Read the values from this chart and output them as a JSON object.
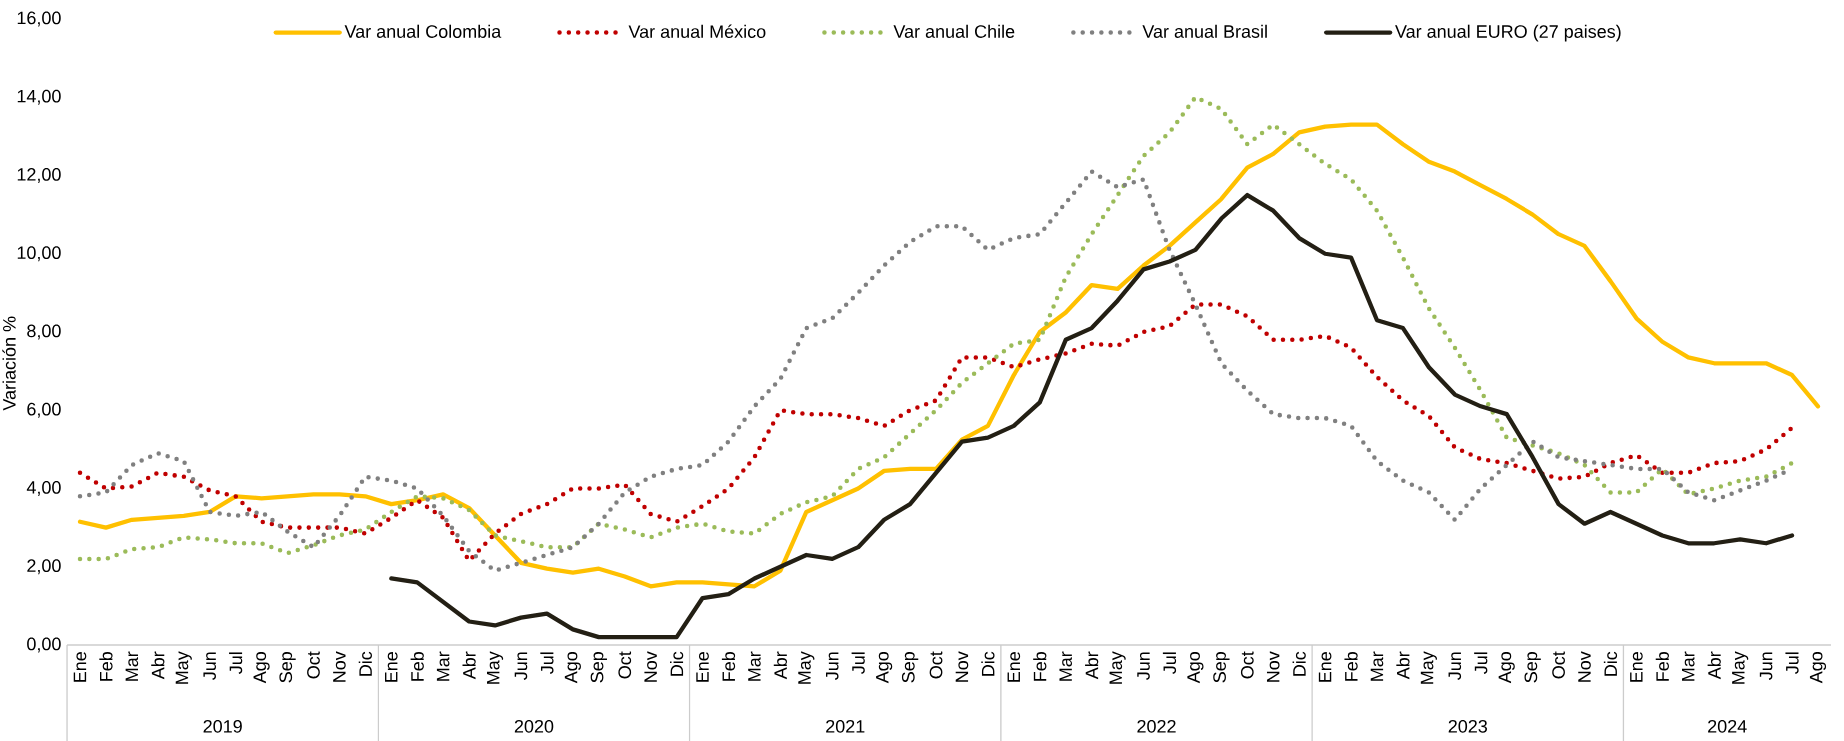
{
  "chart_data": {
    "type": "line",
    "ylabel": "Variación %",
    "legend": "top",
    "grid": false,
    "categories": [
      "Ene",
      "Feb",
      "Mar",
      "Abr",
      "May",
      "Jun",
      "Jul",
      "Ago",
      "Sep",
      "Oct",
      "Nov",
      "Dic",
      "Ene",
      "Feb",
      "Mar",
      "Abr",
      "May",
      "Jun",
      "Jul",
      "Ago",
      "Sep",
      "Oct",
      "Nov",
      "Dic",
      "Ene",
      "Feb",
      "Mar",
      "Abr",
      "May",
      "Jun",
      "Jul",
      "Ago",
      "Sep",
      "Oct",
      "Nov",
      "Dic",
      "Ene",
      "Feb",
      "Mar",
      "Abr",
      "May",
      "Jun",
      "Jul",
      "Ago",
      "Sep",
      "Oct",
      "Nov",
      "Dic",
      "Ene",
      "Feb",
      "Mar",
      "Abr",
      "May",
      "Jun",
      "Jul",
      "Ago",
      "Sep",
      "Oct",
      "Nov",
      "Dic",
      "Ene",
      "Feb",
      "Mar",
      "Abr",
      "May",
      "Jun",
      "Jul",
      "Ago"
    ],
    "annotations": [
      "2019",
      "2020",
      "2021",
      "2022",
      "2023",
      "2024"
    ],
    "ylim": [
      0,
      16
    ],
    "yticks": [
      {
        "value": 0,
        "label": "0,00"
      },
      {
        "value": 2,
        "label": "2,00"
      },
      {
        "value": 4,
        "label": "4,00"
      },
      {
        "value": 6,
        "label": "6,00"
      },
      {
        "value": 8,
        "label": "8,00"
      },
      {
        "value": 10,
        "label": "10,00"
      },
      {
        "value": 12,
        "label": "12,00"
      },
      {
        "value": 14,
        "label": "14,00"
      },
      {
        "value": 16,
        "label": "16,00"
      }
    ],
    "series": [
      {
        "name": "Var anual Colombia",
        "color": "#ffc000",
        "line_style": "solid",
        "values": [
          3.15,
          3.0,
          3.2,
          3.25,
          3.3,
          3.4,
          3.8,
          3.75,
          3.8,
          3.85,
          3.85,
          3.8,
          3.6,
          3.7,
          3.85,
          3.5,
          2.8,
          2.1,
          1.95,
          1.85,
          1.95,
          1.75,
          1.5,
          1.6,
          1.6,
          1.55,
          1.5,
          1.9,
          3.4,
          3.7,
          4.0,
          4.45,
          4.5,
          4.5,
          5.25,
          5.6,
          6.9,
          8.0,
          8.5,
          9.2,
          9.1,
          9.7,
          10.2,
          10.8,
          11.4,
          12.2,
          12.55,
          13.1,
          13.25,
          13.3,
          13.3,
          12.8,
          12.35,
          12.1,
          11.75,
          11.4,
          11.0,
          10.5,
          10.2,
          9.3,
          8.35,
          7.75,
          7.35,
          7.2,
          7.2,
          7.2,
          6.9,
          6.1
        ]
      },
      {
        "name": "Var anual México",
        "color": "#c00000",
        "line_style": "dotted",
        "values": [
          4.4,
          4.0,
          4.05,
          4.4,
          4.3,
          3.95,
          3.8,
          3.15,
          3.0,
          3.0,
          3.0,
          2.85,
          3.25,
          3.7,
          3.25,
          2.15,
          2.85,
          3.35,
          3.6,
          4.0,
          4.0,
          4.1,
          3.35,
          3.15,
          3.55,
          4.0,
          4.8,
          6.0,
          5.9,
          5.9,
          5.8,
          5.6,
          6.0,
          6.25,
          7.35,
          7.35,
          7.1,
          7.3,
          7.45,
          7.7,
          7.65,
          8.0,
          8.15,
          8.7,
          8.7,
          8.4,
          7.8,
          7.8,
          7.9,
          7.6,
          6.85,
          6.25,
          5.85,
          5.05,
          4.75,
          4.65,
          4.45,
          4.25,
          4.3,
          4.65,
          4.85,
          4.4,
          4.4,
          4.65,
          4.7,
          5.0,
          5.55,
          null
        ]
      },
      {
        "name": "Var anual Chile",
        "color": "#9bbb59",
        "line_style": "dotted",
        "values": [
          2.2,
          2.2,
          2.45,
          2.5,
          2.75,
          2.7,
          2.6,
          2.6,
          2.35,
          2.55,
          2.8,
          2.95,
          3.4,
          3.8,
          3.75,
          3.45,
          2.8,
          2.65,
          2.5,
          2.5,
          3.1,
          2.95,
          2.75,
          3.0,
          3.1,
          2.9,
          2.85,
          3.35,
          3.65,
          3.8,
          4.5,
          4.8,
          5.4,
          6.0,
          6.7,
          7.2,
          7.7,
          7.8,
          9.4,
          10.5,
          11.5,
          12.5,
          13.1,
          14.0,
          13.7,
          12.8,
          13.3,
          12.8,
          12.3,
          11.9,
          11.1,
          9.9,
          8.6,
          7.6,
          6.5,
          5.3,
          5.1,
          4.9,
          4.6,
          3.9,
          3.9,
          4.5,
          3.85,
          4.0,
          4.2,
          4.3,
          4.65,
          null
        ]
      },
      {
        "name": "Var anual Brasil",
        "color": "#808080",
        "line_style": "dotted",
        "values": [
          3.8,
          3.9,
          4.6,
          4.9,
          4.7,
          3.4,
          3.3,
          3.4,
          2.9,
          2.5,
          3.3,
          4.3,
          4.2,
          4.0,
          3.3,
          2.4,
          1.9,
          2.1,
          2.3,
          2.5,
          3.1,
          3.9,
          4.3,
          4.5,
          4.6,
          5.2,
          6.1,
          6.8,
          8.1,
          8.35,
          9.0,
          9.7,
          10.3,
          10.7,
          10.7,
          10.1,
          10.4,
          10.5,
          11.3,
          12.1,
          11.7,
          11.9,
          10.1,
          8.7,
          7.2,
          6.5,
          5.9,
          5.8,
          5.8,
          5.6,
          4.7,
          4.2,
          3.9,
          3.2,
          4.0,
          4.6,
          5.2,
          4.8,
          4.7,
          4.6,
          4.5,
          4.5,
          3.9,
          3.7,
          3.95,
          4.2,
          4.5,
          null
        ]
      },
      {
        "name": "Var anual EURO (27 paises)",
        "color": "#231f14",
        "line_style": "solid",
        "values": [
          null,
          null,
          null,
          null,
          null,
          null,
          null,
          null,
          null,
          null,
          null,
          null,
          1.7,
          1.6,
          1.1,
          0.6,
          0.5,
          0.7,
          0.8,
          0.4,
          0.2,
          0.2,
          0.2,
          0.2,
          1.2,
          1.3,
          1.7,
          2.0,
          2.3,
          2.2,
          2.5,
          3.2,
          3.6,
          4.4,
          5.2,
          5.3,
          5.6,
          6.2,
          7.8,
          8.1,
          8.8,
          9.6,
          9.8,
          10.1,
          10.9,
          11.5,
          11.1,
          10.4,
          10.0,
          9.9,
          8.3,
          8.1,
          7.1,
          6.4,
          6.1,
          5.9,
          4.8,
          3.6,
          3.1,
          3.4,
          3.1,
          2.8,
          2.6,
          2.6,
          2.7,
          2.6,
          2.8,
          null
        ]
      }
    ]
  }
}
